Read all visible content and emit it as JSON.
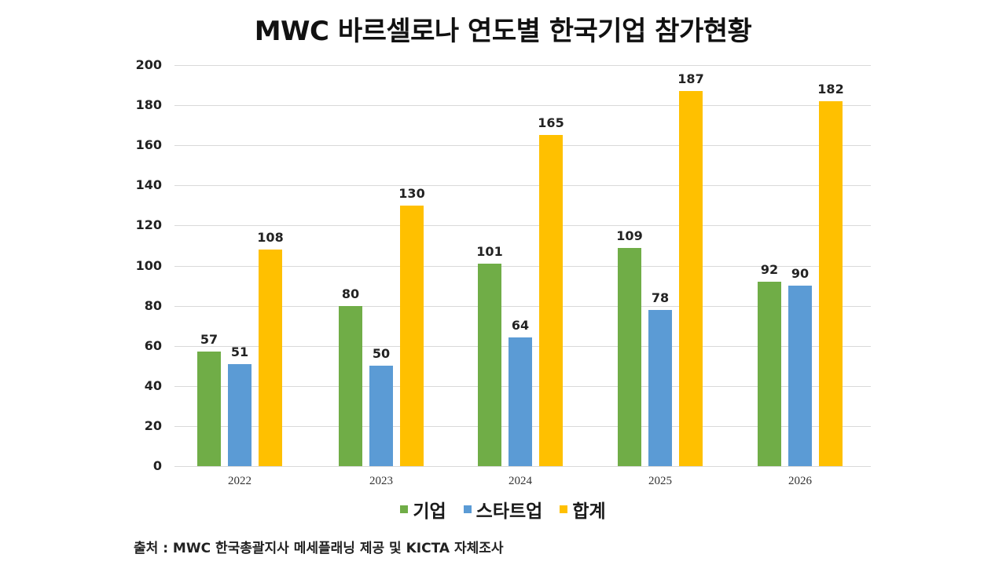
{
  "chart_data": {
    "type": "bar",
    "title": "MWC 바르셀로나 연도별 한국기업 참가현황",
    "xlabel": "",
    "ylabel": "",
    "ylim": [
      0,
      200
    ],
    "yticks": [
      0,
      20,
      40,
      60,
      80,
      100,
      120,
      140,
      160,
      180,
      200
    ],
    "grid": true,
    "legend_position": "bottom",
    "categories": [
      "2022",
      "2023",
      "2024",
      "2025",
      "2026"
    ],
    "series": [
      {
        "name": "기업",
        "color": "#70ad47",
        "values": [
          57,
          80,
          101,
          109,
          92
        ]
      },
      {
        "name": "스타트업",
        "color": "#5b9bd5",
        "values": [
          51,
          50,
          64,
          78,
          90
        ]
      },
      {
        "name": "합계",
        "color": "#ffc000",
        "values": [
          108,
          130,
          165,
          187,
          182
        ]
      }
    ],
    "annotations": [
      "출처 : MWC 한국총괄지사 메세플래닝 제공 및 KICTA 자체조사"
    ]
  },
  "source_note": "출처 : MWC 한국총괄지사 메세플래닝 제공 및 KICTA 자체조사"
}
